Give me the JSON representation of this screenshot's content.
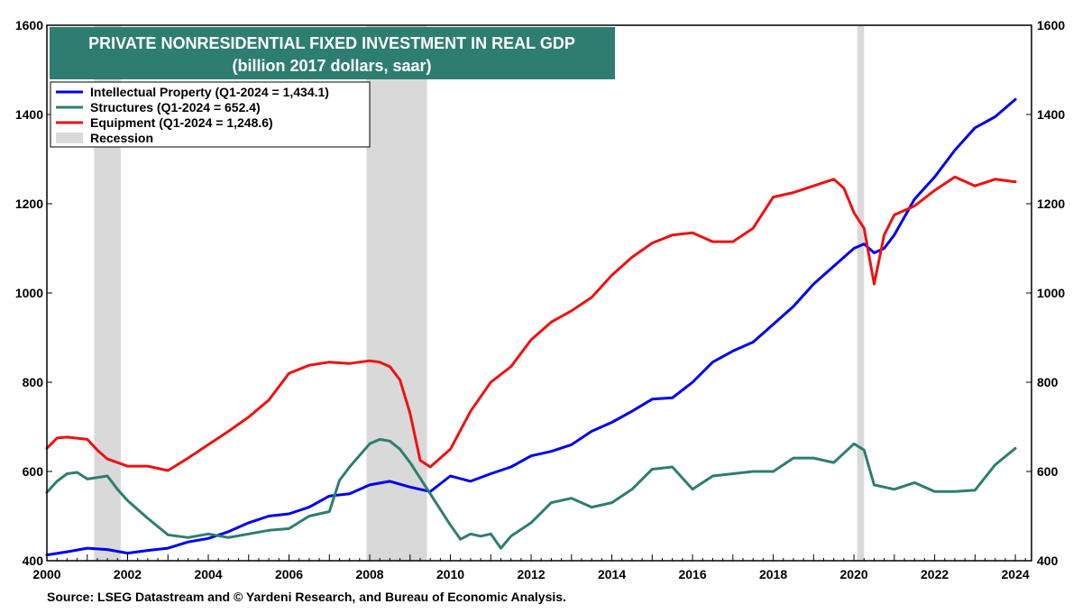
{
  "chart_data": {
    "type": "line",
    "title": "PRIVATE NONRESIDENTIAL FIXED INVESTMENT IN REAL GDP",
    "subtitle": "(billion 2017 dollars, saar)",
    "source": "Source: LSEG Datastream and © Yardeni Research, and Bureau of Economic Analysis.",
    "xlim": [
      2000,
      2024.4
    ],
    "ylim": [
      400,
      1600
    ],
    "x_ticks": [
      2000,
      2002,
      2004,
      2006,
      2008,
      2010,
      2012,
      2014,
      2016,
      2018,
      2020,
      2022,
      2024
    ],
    "x_tick_labels": [
      "2000",
      "2002",
      "2004",
      "2006",
      "2008",
      "2010",
      "2012",
      "2014",
      "2016",
      "2018",
      "2020",
      "2022",
      "2024"
    ],
    "y_ticks": [
      400,
      600,
      800,
      1000,
      1200,
      1400,
      1600
    ],
    "y_tick_labels": [
      "400",
      "600",
      "800",
      "1000",
      "1200",
      "1400",
      "1600"
    ],
    "recessions": [
      [
        2001.17,
        2001.83
      ],
      [
        2007.92,
        2009.42
      ],
      [
        2020.08,
        2020.25
      ]
    ],
    "legend": [
      {
        "label": "Intellectual Property (Q1-2024 = 1,434.1)",
        "color": "#0000ee",
        "kind": "line"
      },
      {
        "label": "Structures  (Q1-2024 = 652.4)",
        "color": "#2e7d71",
        "kind": "line"
      },
      {
        "label": "Equipment (Q1-2024 = 1,248.6)",
        "color": "#ee1111",
        "kind": "line"
      },
      {
        "label": "Recession",
        "color": "#d9d9d9",
        "kind": "box"
      }
    ],
    "series": [
      {
        "name": "Intellectual Property",
        "color": "#0000ee",
        "x": [
          2000.0,
          2000.5,
          2001.0,
          2001.5,
          2002.0,
          2002.5,
          2003.0,
          2003.5,
          2004.0,
          2004.5,
          2005.0,
          2005.5,
          2006.0,
          2006.5,
          2007.0,
          2007.5,
          2008.0,
          2008.5,
          2009.0,
          2009.5,
          2010.0,
          2010.5,
          2011.0,
          2011.5,
          2012.0,
          2012.5,
          2013.0,
          2013.5,
          2014.0,
          2014.5,
          2015.0,
          2015.5,
          2016.0,
          2016.5,
          2017.0,
          2017.5,
          2018.0,
          2018.5,
          2019.0,
          2019.5,
          2019.75,
          2020.0,
          2020.25,
          2020.5,
          2020.75,
          2021.0,
          2021.5,
          2022.0,
          2022.5,
          2023.0,
          2023.5,
          2024.0
        ],
        "values": [
          413,
          420,
          428,
          425,
          417,
          423,
          428,
          442,
          450,
          465,
          485,
          500,
          505,
          520,
          545,
          550,
          570,
          578,
          565,
          555,
          590,
          578,
          595,
          610,
          635,
          645,
          660,
          690,
          710,
          735,
          762,
          765,
          800,
          845,
          870,
          890,
          930,
          970,
          1020,
          1060,
          1080,
          1100,
          1110,
          1090,
          1100,
          1130,
          1210,
          1260,
          1320,
          1370,
          1395,
          1434
        ]
      },
      {
        "name": "Structures",
        "color": "#2e7d71",
        "x": [
          2000.0,
          2000.25,
          2000.5,
          2000.75,
          2001.0,
          2001.5,
          2001.75,
          2002.0,
          2002.5,
          2003.0,
          2003.5,
          2004.0,
          2004.5,
          2005.0,
          2005.5,
          2006.0,
          2006.5,
          2007.0,
          2007.25,
          2007.5,
          2008.0,
          2008.25,
          2008.5,
          2008.75,
          2009.0,
          2009.5,
          2010.0,
          2010.25,
          2010.5,
          2010.75,
          2011.0,
          2011.25,
          2011.5,
          2012.0,
          2012.5,
          2013.0,
          2013.5,
          2014.0,
          2014.5,
          2015.0,
          2015.5,
          2016.0,
          2016.5,
          2017.0,
          2017.5,
          2018.0,
          2018.5,
          2019.0,
          2019.5,
          2020.0,
          2020.25,
          2020.5,
          2021.0,
          2021.5,
          2022.0,
          2022.5,
          2023.0,
          2023.5,
          2024.0
        ],
        "values": [
          553,
          578,
          595,
          598,
          583,
          590,
          560,
          535,
          495,
          458,
          452,
          460,
          452,
          460,
          468,
          472,
          500,
          510,
          580,
          610,
          662,
          672,
          668,
          650,
          620,
          550,
          480,
          448,
          460,
          455,
          460,
          428,
          455,
          485,
          530,
          540,
          520,
          530,
          560,
          605,
          610,
          560,
          590,
          595,
          600,
          600,
          630,
          630,
          620,
          662,
          648,
          570,
          560,
          575,
          555,
          555,
          558,
          615,
          652
        ]
      },
      {
        "name": "Equipment",
        "color": "#ee1111",
        "x": [
          2000.0,
          2000.25,
          2000.5,
          2001.0,
          2001.25,
          2001.5,
          2002.0,
          2002.5,
          2003.0,
          2003.5,
          2004.0,
          2004.5,
          2005.0,
          2005.5,
          2006.0,
          2006.5,
          2007.0,
          2007.5,
          2008.0,
          2008.25,
          2008.5,
          2008.75,
          2009.0,
          2009.25,
          2009.5,
          2010.0,
          2010.5,
          2011.0,
          2011.5,
          2012.0,
          2012.5,
          2013.0,
          2013.5,
          2014.0,
          2014.5,
          2015.0,
          2015.5,
          2016.0,
          2016.5,
          2017.0,
          2017.5,
          2018.0,
          2018.5,
          2019.0,
          2019.5,
          2019.75,
          2020.0,
          2020.25,
          2020.5,
          2020.75,
          2021.0,
          2021.5,
          2022.0,
          2022.5,
          2023.0,
          2023.5,
          2024.0
        ],
        "values": [
          652,
          675,
          677,
          672,
          648,
          628,
          612,
          612,
          602,
          630,
          660,
          690,
          722,
          760,
          820,
          838,
          845,
          842,
          848,
          845,
          835,
          805,
          730,
          625,
          610,
          650,
          735,
          800,
          835,
          895,
          935,
          960,
          990,
          1040,
          1080,
          1112,
          1130,
          1135,
          1115,
          1115,
          1145,
          1215,
          1225,
          1240,
          1255,
          1235,
          1180,
          1145,
          1020,
          1130,
          1175,
          1195,
          1230,
          1260,
          1240,
          1255,
          1249
        ]
      }
    ]
  }
}
